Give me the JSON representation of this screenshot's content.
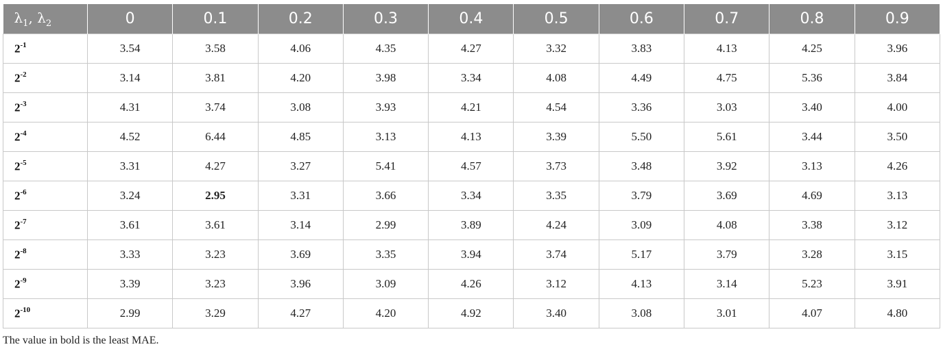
{
  "table": {
    "corner_label": {
      "first": "λ",
      "first_sub": "1",
      "sep": ", ",
      "second": "λ",
      "second_sub": "2"
    },
    "columns": [
      "0",
      "0.1",
      "0.2",
      "0.3",
      "0.4",
      "0.5",
      "0.6",
      "0.7",
      "0.8",
      "0.9"
    ],
    "rows": [
      {
        "base": "2",
        "exp": "-1",
        "values": [
          "3.54",
          "3.58",
          "4.06",
          "4.35",
          "4.27",
          "3.32",
          "3.83",
          "4.13",
          "4.25",
          "3.96"
        ]
      },
      {
        "base": "2",
        "exp": "-2",
        "values": [
          "3.14",
          "3.81",
          "4.20",
          "3.98",
          "3.34",
          "4.08",
          "4.49",
          "4.75",
          "5.36",
          "3.84"
        ]
      },
      {
        "base": "2",
        "exp": "-3",
        "values": [
          "4.31",
          "3.74",
          "3.08",
          "3.93",
          "4.21",
          "4.54",
          "3.36",
          "3.03",
          "3.40",
          "4.00"
        ]
      },
      {
        "base": "2",
        "exp": "-4",
        "values": [
          "4.52",
          "6.44",
          "4.85",
          "3.13",
          "4.13",
          "3.39",
          "5.50",
          "5.61",
          "3.44",
          "3.50"
        ]
      },
      {
        "base": "2",
        "exp": "-5",
        "values": [
          "3.31",
          "4.27",
          "3.27",
          "5.41",
          "4.57",
          "3.73",
          "3.48",
          "3.92",
          "3.13",
          "4.26"
        ]
      },
      {
        "base": "2",
        "exp": "-6",
        "values": [
          "3.24",
          "2.95",
          "3.31",
          "3.66",
          "3.34",
          "3.35",
          "3.79",
          "3.69",
          "4.69",
          "3.13"
        ]
      },
      {
        "base": "2",
        "exp": "-7",
        "values": [
          "3.61",
          "3.61",
          "3.14",
          "2.99",
          "3.89",
          "4.24",
          "3.09",
          "4.08",
          "3.38",
          "3.12"
        ]
      },
      {
        "base": "2",
        "exp": "-8",
        "values": [
          "3.33",
          "3.23",
          "3.69",
          "3.35",
          "3.94",
          "3.74",
          "5.17",
          "3.79",
          "3.28",
          "3.15"
        ]
      },
      {
        "base": "2",
        "exp": "-9",
        "values": [
          "3.39",
          "3.23",
          "3.96",
          "3.09",
          "4.26",
          "3.12",
          "4.13",
          "3.14",
          "5.23",
          "3.91"
        ]
      },
      {
        "base": "2",
        "exp": "-10",
        "values": [
          "2.99",
          "3.29",
          "4.27",
          "4.20",
          "4.92",
          "3.40",
          "3.08",
          "3.01",
          "4.07",
          "4.80"
        ]
      }
    ],
    "bold_cell": {
      "row": 5,
      "col": 1
    },
    "colors": {
      "header_bg": "#8c8c8c",
      "header_text": "#ffffff",
      "grid": "#c8c8c8"
    }
  },
  "footnote": "The value in bold is the least MAE."
}
